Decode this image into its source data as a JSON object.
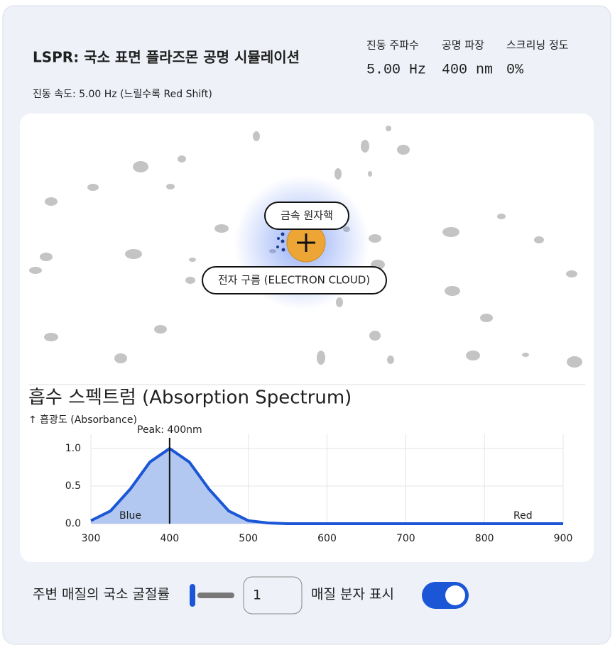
{
  "header": {
    "title": "LSPR: 국소 표면 플라즈몬 공명 시뮬레이션",
    "subtitle": "진동 속도: 5.00 Hz (느릴수록 Red Shift)",
    "stats": [
      {
        "label": "진동 주파수",
        "value": "5.00 Hz"
      },
      {
        "label": "공명 파장",
        "value": "400 nm"
      },
      {
        "label": "스크리닝 정도",
        "value": "0%"
      }
    ]
  },
  "simulation": {
    "nucleus_label": "금속 원자핵",
    "cloud_label": "전자 구름 (ELECTRON CLOUD)"
  },
  "chart_data": {
    "type": "area",
    "title": "흡수 스펙트럼 (Absorption Spectrum)",
    "y_label": "↑ 흡광도 (Absorbance)",
    "x": [
      300,
      325,
      350,
      375,
      400,
      425,
      450,
      475,
      500,
      525,
      550,
      575,
      600,
      625,
      650,
      675,
      700,
      725,
      750,
      775,
      800,
      825,
      850,
      875,
      900
    ],
    "values": [
      0.04,
      0.17,
      0.46,
      0.82,
      1.0,
      0.82,
      0.46,
      0.17,
      0.04,
      0.01,
      0,
      0,
      0,
      0,
      0,
      0,
      0,
      0,
      0,
      0,
      0,
      0,
      0,
      0,
      0
    ],
    "color": "#1a56d6",
    "fill": "#b3c8f0",
    "xlim": [
      300,
      900
    ],
    "ylim": [
      0,
      1
    ],
    "xticks": [
      300,
      400,
      500,
      600,
      700,
      800,
      900
    ],
    "yticks": [
      {
        "value": 0,
        "label": "0.0"
      },
      {
        "value": 0.5,
        "label": "0.5"
      },
      {
        "value": 1,
        "label": "1.0"
      }
    ],
    "grid": true,
    "annotations": [
      {
        "text": "Peak: 400nm",
        "x": 400
      }
    ],
    "region_labels": [
      "Blue",
      "Red"
    ]
  },
  "controls": {
    "refractive_label": "주변 매질의 국소 굴절률",
    "refractive_value": "1",
    "toggle_label": "매질 분자 표시"
  }
}
